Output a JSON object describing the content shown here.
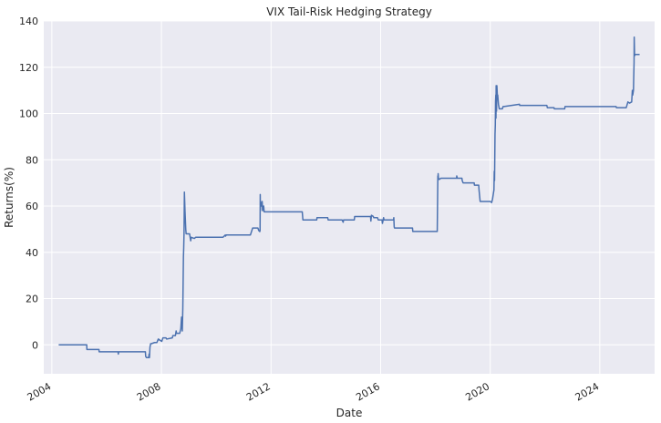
{
  "chart_data": {
    "type": "line",
    "title": "VIX Tail-Risk Hedging Strategy",
    "xlabel": "Date",
    "ylabel": "Returns(%)",
    "x_range": [
      "2003-09-15",
      "2026-01-01"
    ],
    "ylim": [
      -12.5,
      140
    ],
    "x_ticks": [
      "2004",
      "2008",
      "2012",
      "2016",
      "2020",
      "2024"
    ],
    "y_ticks": [
      0,
      20,
      40,
      60,
      80,
      100,
      120,
      140
    ],
    "grid": true,
    "colors": {
      "series": "#4c72b0",
      "background": "#eaeaf2",
      "grid": "#ffffff"
    },
    "series": [
      {
        "x": [
          "2004-04-01",
          "2005-04-10",
          "2005-04-12",
          "2005-09-20",
          "2005-09-22",
          "2006-06-01",
          "2006-06-05",
          "2006-06-10",
          "2006-12-25",
          "2007-01-01",
          "2007-06-01",
          "2007-06-05",
          "2007-06-15",
          "2007-07-15",
          "2007-07-20",
          "2007-07-25",
          "2007-08-01",
          "2007-08-10",
          "2007-08-20",
          "2007-10-01",
          "2007-11-01",
          "2007-11-20",
          "2008-01-05",
          "2008-01-20",
          "2008-03-01",
          "2008-03-10",
          "2008-05-25",
          "2008-06-01",
          "2008-07-05",
          "2008-07-15",
          "2008-07-20",
          "2008-09-01",
          "2008-09-15",
          "2008-09-25",
          "2008-10-05",
          "2008-10-12",
          "2008-10-16",
          "2008-10-20",
          "2008-10-24",
          "2008-10-28",
          "2008-11-02",
          "2008-11-10",
          "2008-11-20",
          "2008-11-25",
          "2009-01-10",
          "2009-01-25",
          "2009-02-01",
          "2009-03-15",
          "2009-04-01",
          "2010-03-01",
          "2010-04-01",
          "2010-05-01",
          "2010-05-05",
          "2010-05-15",
          "2011-04-01",
          "2011-05-01",
          "2011-07-10",
          "2011-07-20",
          "2011-08-01",
          "2011-08-05",
          "2011-08-08",
          "2011-08-10",
          "2011-08-12",
          "2011-08-15",
          "2011-08-20",
          "2011-09-01",
          "2011-09-05",
          "2011-09-10",
          "2011-09-25",
          "2011-10-01",
          "2011-10-15",
          "2013-02-20",
          "2013-03-01",
          "2013-09-01",
          "2013-09-05",
          "2014-01-25",
          "2014-02-01",
          "2014-08-01",
          "2014-08-05",
          "2014-08-20",
          "2014-08-25",
          "2015-01-15",
          "2015-01-20",
          "2015-08-20",
          "2015-08-24",
          "2015-09-01",
          "2015-09-25",
          "2015-10-01",
          "2015-11-20",
          "2015-12-01",
          "2016-01-20",
          "2016-01-25",
          "2016-02-10",
          "2016-02-15",
          "2016-06-20",
          "2016-06-25",
          "2016-06-30",
          "2016-07-05",
          "2017-03-01",
          "2017-03-05",
          "2018-01-25",
          "2018-02-02",
          "2018-02-05",
          "2018-02-06",
          "2018-02-10",
          "2018-02-20",
          "2018-03-15",
          "2018-03-20",
          "2018-04-01",
          "2018-10-10",
          "2018-10-12",
          "2018-10-20",
          "2018-12-20",
          "2018-12-24",
          "2019-01-05",
          "2019-06-01",
          "2019-06-05",
          "2019-08-01",
          "2019-08-05",
          "2019-08-20",
          "2020-01-01",
          "2020-01-20",
          "2020-02-01",
          "2020-02-20",
          "2020-02-24",
          "2020-02-28",
          "2020-03-05",
          "2020-03-09",
          "2020-03-12",
          "2020-03-16",
          "2020-03-18",
          "2020-03-20",
          "2020-03-25",
          "2020-03-30",
          "2020-04-05",
          "2020-04-10",
          "2020-04-20",
          "2020-05-01",
          "2020-06-01",
          "2020-06-11",
          "2020-06-20",
          "2020-07-01",
          "2021-01-25",
          "2021-01-28",
          "2022-01-25",
          "2022-02-01",
          "2022-05-01",
          "2022-05-05",
          "2022-05-10",
          "2022-09-20",
          "2022-09-25",
          "2024-08-01",
          "2024-08-05",
          "2024-08-10",
          "2024-12-15",
          "2024-12-18",
          "2025-01-10",
          "2025-02-01",
          "2025-03-01",
          "2025-03-10",
          "2025-03-15",
          "2025-03-25",
          "2025-03-28",
          "2025-04-02",
          "2025-04-04",
          "2025-04-07",
          "2025-04-08",
          "2025-04-10",
          "2025-04-15",
          "2025-04-20",
          "2025-04-25",
          "2025-05-01",
          "2025-06-15"
        ],
        "y": [
          0,
          0,
          -2,
          -2,
          -3,
          -3,
          -4,
          -3,
          -3,
          -3,
          -3,
          -5,
          -5.5,
          -5.5,
          -4,
          -5.5,
          -1,
          0.5,
          0.5,
          1,
          1,
          2.5,
          1.5,
          3,
          3,
          2.5,
          3,
          4,
          4,
          6,
          5,
          5,
          7,
          12,
          6,
          16,
          27,
          38,
          42,
          48,
          66,
          58,
          50,
          48,
          48,
          45,
          46.5,
          46,
          46.5,
          46.5,
          46.5,
          47.5,
          47,
          47.5,
          47.5,
          50.5,
          50.5,
          49.5,
          49,
          49,
          49.5,
          65,
          58,
          62,
          60,
          60,
          62,
          58,
          60,
          57.5,
          57.5,
          57.5,
          54,
          54,
          55,
          55,
          54,
          54,
          54,
          53,
          54,
          54,
          55.5,
          55.5,
          53.5,
          56,
          55.5,
          55,
          55,
          54,
          54,
          52.5,
          55,
          54,
          54,
          55,
          51,
          50.5,
          50.5,
          49,
          49,
          73,
          72,
          74,
          72,
          71.5,
          72,
          72,
          72,
          72,
          73,
          72,
          72,
          71,
          70,
          70,
          69,
          69,
          67,
          62,
          62,
          61.5,
          63,
          67,
          75,
          71,
          91,
          95,
          105,
          108,
          98,
          112,
          101,
          112,
          108,
          108,
          104,
          102,
          102,
          102,
          103,
          103,
          104,
          103.5,
          103.5,
          102.5,
          102.5,
          102,
          102,
          102,
          103,
          103,
          103,
          102.5,
          102.5,
          102.5,
          105,
          104.5,
          105,
          110,
          108,
          110,
          115,
          122,
          133,
          128,
          126,
          125,
          125.5,
          125.5,
          125.5,
          125.5,
          125.5
        ]
      }
    ]
  }
}
